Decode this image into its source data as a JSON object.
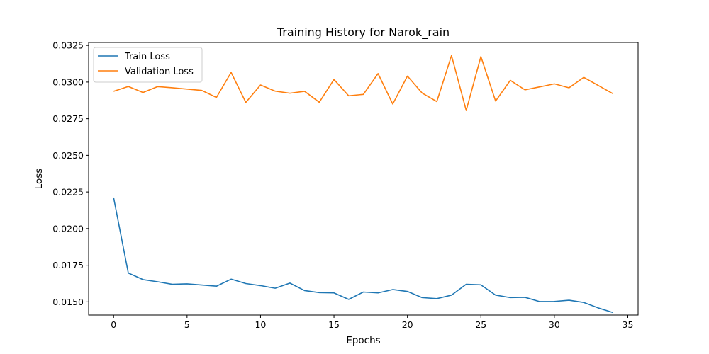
{
  "chart_data": {
    "type": "line",
    "title": "Training History for Narok_rain",
    "xlabel": "Epochs",
    "ylabel": "Loss",
    "xlim": [
      -1.7,
      35.7
    ],
    "ylim": [
      0.0141,
      0.0327
    ],
    "xticks": [
      0,
      5,
      10,
      15,
      20,
      25,
      30,
      35
    ],
    "yticks": [
      0.015,
      0.0175,
      0.02,
      0.0225,
      0.025,
      0.0275,
      0.03,
      0.0325
    ],
    "ytick_labels": [
      "0.0150",
      "0.0175",
      "0.0200",
      "0.0225",
      "0.0250",
      "0.0275",
      "0.0300",
      "0.0325"
    ],
    "grid": false,
    "legend_position": "top-left",
    "x": [
      0,
      1,
      2,
      3,
      4,
      5,
      6,
      7,
      8,
      9,
      10,
      11,
      12,
      13,
      14,
      15,
      16,
      17,
      18,
      19,
      20,
      21,
      22,
      23,
      24,
      25,
      26,
      27,
      28,
      29,
      30,
      31,
      32,
      33,
      34
    ],
    "series": [
      {
        "name": "Train Loss",
        "color": "#1f77b4",
        "values": [
          0.02212,
          0.01697,
          0.01652,
          0.01637,
          0.0162,
          0.01623,
          0.01615,
          0.01607,
          0.01655,
          0.01625,
          0.01611,
          0.01593,
          0.01628,
          0.01577,
          0.01563,
          0.01561,
          0.01517,
          0.01567,
          0.01561,
          0.01584,
          0.01571,
          0.01529,
          0.01522,
          0.01546,
          0.0162,
          0.01616,
          0.01546,
          0.01529,
          0.01531,
          0.01502,
          0.01503,
          0.01511,
          0.01496,
          0.01458,
          0.01427
        ]
      },
      {
        "name": "Validation Loss",
        "color": "#ff7f0e",
        "values": [
          0.02937,
          0.0297,
          0.02929,
          0.02969,
          0.02961,
          0.02952,
          0.02943,
          0.02895,
          0.03066,
          0.02861,
          0.0298,
          0.02938,
          0.02924,
          0.02937,
          0.02862,
          0.03018,
          0.02906,
          0.02916,
          0.03058,
          0.0285,
          0.03041,
          0.02925,
          0.02867,
          0.03181,
          0.02806,
          0.03174,
          0.0287,
          0.03012,
          0.02947,
          0.02967,
          0.02988,
          0.02961,
          0.03032,
          0.02976,
          0.0292
        ]
      }
    ]
  }
}
